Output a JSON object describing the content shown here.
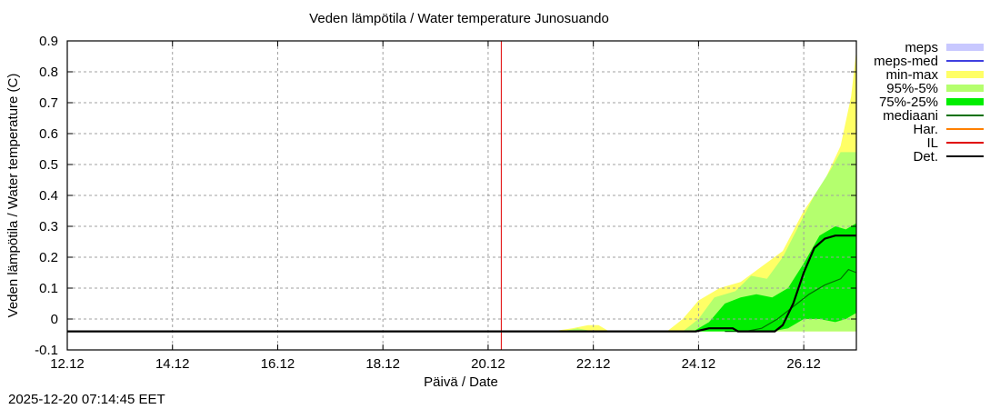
{
  "chart_data": {
    "type": "area",
    "title": "Veden lämpötila / Water temperature Junosuando",
    "xlabel": "Päivä / Date",
    "ylabel": "Veden lämpötila / Water temperature (C)",
    "ylim": [
      -0.1,
      0.9
    ],
    "xlim_days": [
      0,
      15
    ],
    "grid": true,
    "legend_position": "right",
    "x_ticks": [
      "12.12",
      "14.12",
      "16.12",
      "18.12",
      "20.12",
      "22.12",
      "24.12",
      "26.12"
    ],
    "y_ticks": [
      "-0.1",
      "0",
      "0.1",
      "0.2",
      "0.3",
      "0.4",
      "0.5",
      "0.6",
      "0.7",
      "0.8",
      "0.9"
    ],
    "legend": [
      {
        "label": "meps",
        "color": "#c8c8ff",
        "kind": "band"
      },
      {
        "label": "meps-med",
        "color": "#4040e0",
        "kind": "line"
      },
      {
        "label": "min-max",
        "color": "#ffff66",
        "kind": "band"
      },
      {
        "label": "95%-5%",
        "color": "#b4ff6e",
        "kind": "band"
      },
      {
        "label": "75%-25%",
        "color": "#00ee00",
        "kind": "band"
      },
      {
        "label": "mediaani",
        "color": "#007000",
        "kind": "line"
      },
      {
        "label": "Har.",
        "color": "#ff8000",
        "kind": "line"
      },
      {
        "label": "IL",
        "color": "#e00000",
        "kind": "line"
      },
      {
        "label": "Det.",
        "color": "#000000",
        "kind": "line"
      }
    ],
    "il_marker_day": 8.25,
    "series": [
      {
        "name": "min-max",
        "x": [
          9.2,
          9.6,
          9.9,
          10.1,
          10.3,
          11.4,
          11.7,
          12.0,
          12.4,
          12.8,
          13.2,
          13.6,
          14.0,
          14.4,
          14.7,
          14.9,
          15.0
        ],
        "upper": [
          -0.04,
          -0.03,
          -0.02,
          -0.02,
          -0.04,
          -0.04,
          0.0,
          0.06,
          0.1,
          0.12,
          0.17,
          0.22,
          0.35,
          0.45,
          0.56,
          0.72,
          0.87
        ],
        "lower": [
          -0.04,
          -0.04,
          -0.04,
          -0.04,
          -0.04,
          -0.04,
          -0.04,
          -0.04,
          -0.04,
          -0.04,
          -0.04,
          -0.04,
          -0.04,
          -0.04,
          -0.04,
          -0.04,
          -0.04
        ]
      },
      {
        "name": "95%-5%",
        "x": [
          9.4,
          9.7,
          10.0,
          11.7,
          12.0,
          12.3,
          12.7,
          13.0,
          13.3,
          13.6,
          13.9,
          14.2,
          14.5,
          14.7,
          15.0
        ],
        "upper": [
          -0.04,
          -0.03,
          -0.04,
          -0.04,
          0.0,
          0.07,
          0.09,
          0.14,
          0.13,
          0.2,
          0.3,
          0.4,
          0.48,
          0.54,
          0.54
        ],
        "lower": [
          -0.04,
          -0.04,
          -0.04,
          -0.04,
          -0.04,
          -0.04,
          -0.04,
          -0.04,
          -0.04,
          -0.04,
          -0.04,
          -0.04,
          -0.04,
          -0.04,
          -0.04
        ]
      },
      {
        "name": "75%-25%",
        "x": [
          11.9,
          12.2,
          12.5,
          12.8,
          13.1,
          13.4,
          13.7,
          14.0,
          14.3,
          14.6,
          14.8,
          15.0
        ],
        "upper": [
          -0.04,
          -0.01,
          0.05,
          0.07,
          0.08,
          0.07,
          0.1,
          0.18,
          0.27,
          0.3,
          0.29,
          0.31
        ],
        "lower": [
          -0.04,
          -0.04,
          -0.04,
          -0.04,
          -0.04,
          -0.04,
          -0.03,
          0.0,
          0.0,
          -0.01,
          0.0,
          0.02
        ]
      },
      {
        "name": "mediaani",
        "x": [
          12.5,
          12.9,
          13.2,
          13.5,
          13.8,
          14.1,
          14.4,
          14.7,
          14.85,
          15.0
        ],
        "values": [
          -0.04,
          -0.04,
          -0.03,
          0.0,
          0.04,
          0.08,
          0.11,
          0.13,
          0.16,
          0.15
        ]
      },
      {
        "name": "Det.",
        "x": [
          0,
          11.95,
          12.2,
          12.5,
          12.65,
          12.75,
          13.0,
          13.45,
          13.6,
          13.8,
          14.0,
          14.2,
          14.4,
          14.6,
          15.0
        ],
        "values": [
          -0.04,
          -0.04,
          -0.03,
          -0.03,
          -0.03,
          -0.04,
          -0.04,
          -0.04,
          -0.02,
          0.05,
          0.15,
          0.23,
          0.26,
          0.27,
          0.27
        ]
      }
    ]
  },
  "labels": {
    "timestamp": "2025-12-20 07:14:45 EET"
  }
}
